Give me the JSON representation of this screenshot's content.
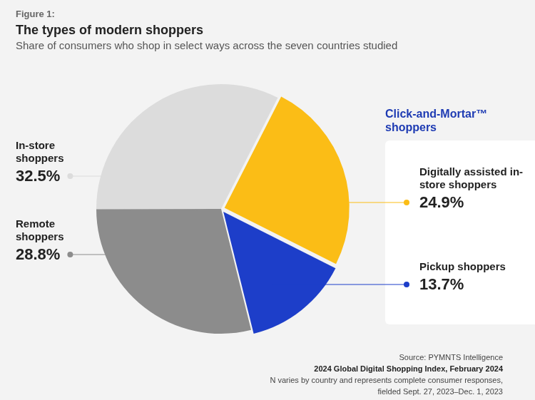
{
  "chart_data": {
    "type": "pie",
    "figure_label": "Figure 1:",
    "title": "The types of modern shoppers",
    "subtitle": "Share of consumers who shop in select ways across the seven countries studied",
    "categories": [
      "Digitally assisted in-store shoppers",
      "Pickup shoppers",
      "Remote shoppers",
      "In-store shoppers"
    ],
    "values": [
      24.9,
      13.7,
      28.8,
      32.5
    ],
    "value_labels": [
      "24.9%",
      "13.7%",
      "28.8%",
      "32.5%"
    ],
    "colors": [
      "#fbbd16",
      "#1d3ec9",
      "#8c8c8c",
      "#dcdcdc"
    ],
    "data_labels": true,
    "groups": [
      {
        "label": "Click-and-Mortar™ shoppers",
        "categories": [
          "Digitally assisted in-store shoppers",
          "Pickup shoppers"
        ]
      }
    ],
    "source": [
      "Source: PYMNTS Intelligence",
      "2024 Global Digital Shopping Index, February 2024",
      "N varies by country and represents complete consumer responses,",
      "fielded Sept. 27, 2023–Dec. 1, 2023"
    ]
  }
}
